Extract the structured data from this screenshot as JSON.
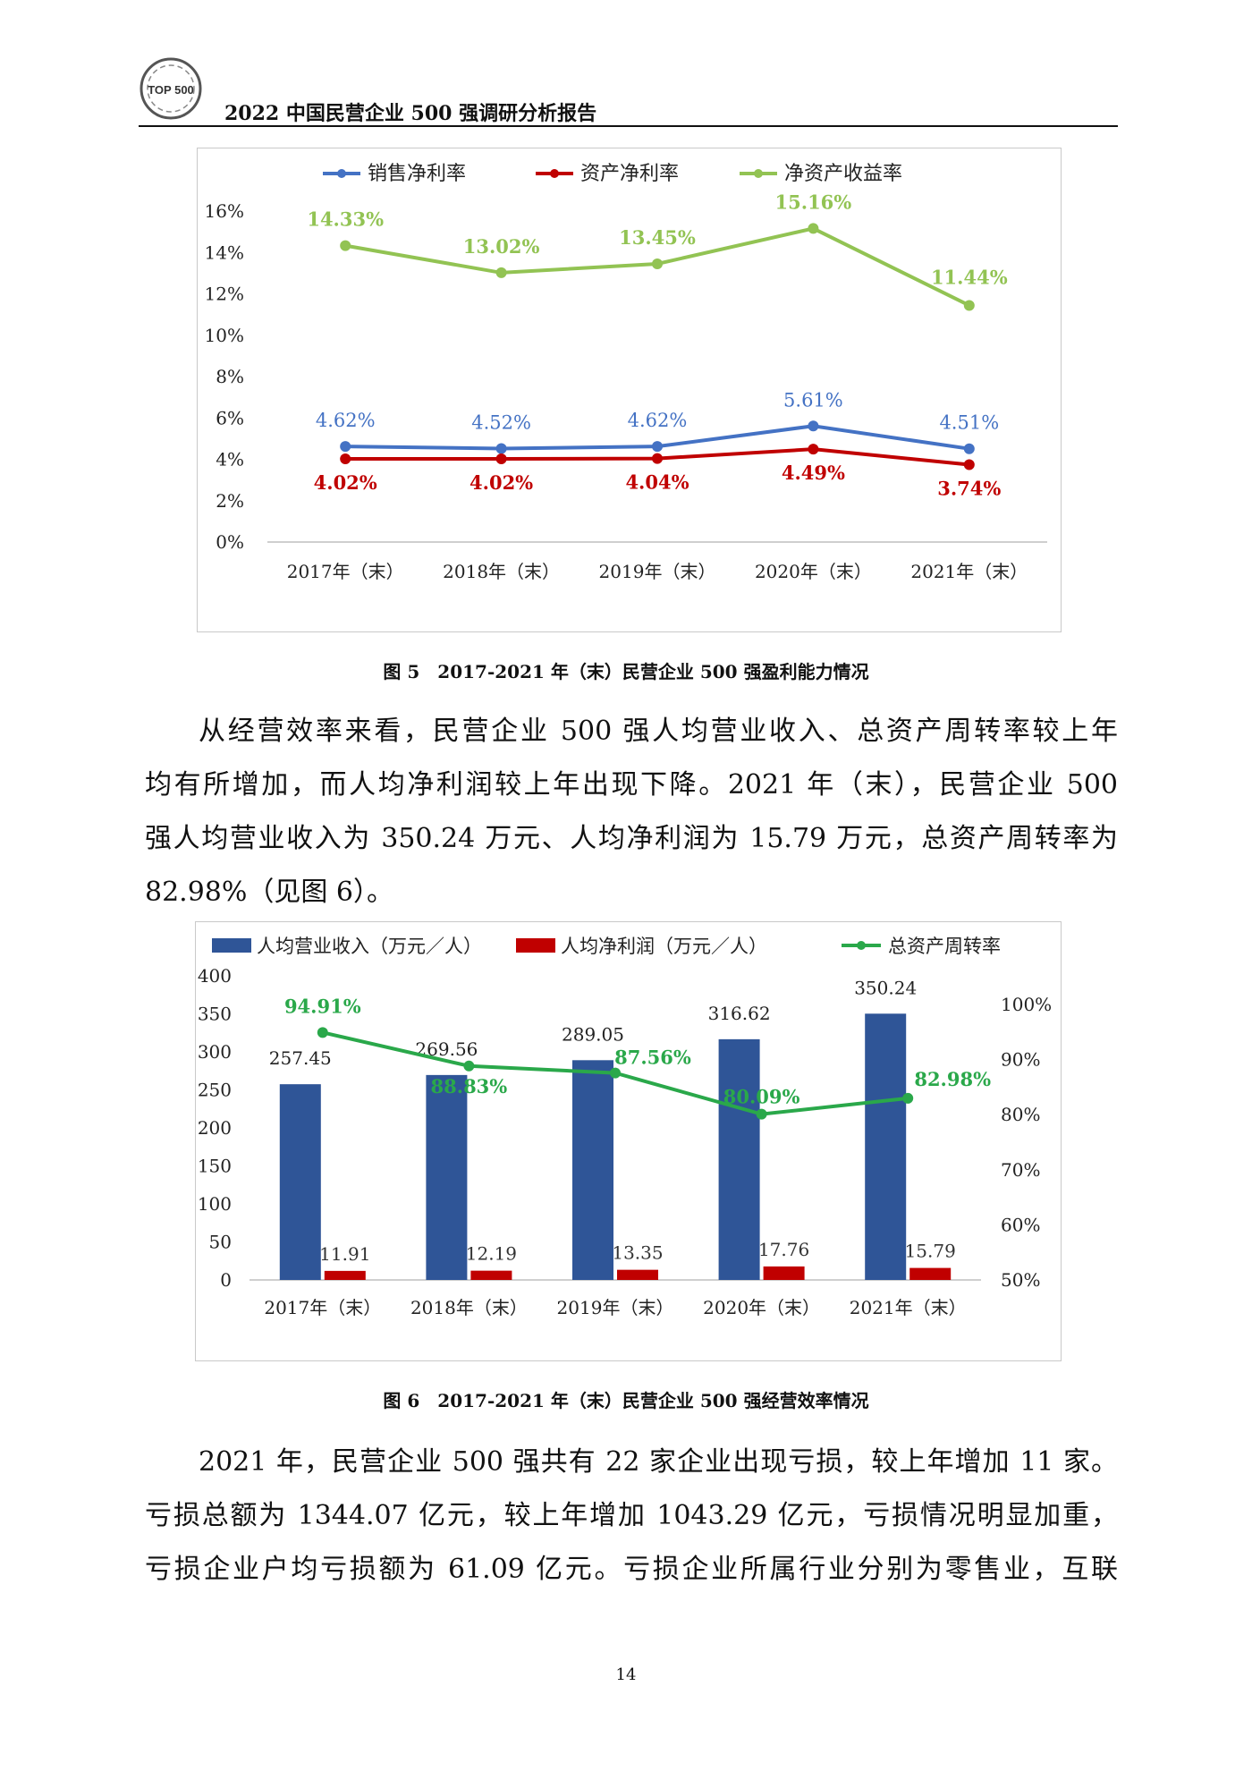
{
  "header": {
    "logo_text": "TOP 500",
    "title": "2022 中国民营企业 500 强调研分析报告"
  },
  "figure5": {
    "caption": "图 5　2017-2021 年（末）民营企业 500 强盈利能力情况",
    "chart_data": {
      "type": "line",
      "categories": [
        "2017年（末）",
        "2018年（末）",
        "2019年（末）",
        "2020年（末）",
        "2021年（末）"
      ],
      "ylim": [
        0,
        16
      ],
      "y_ticks": [
        "0%",
        "2%",
        "4%",
        "6%",
        "8%",
        "10%",
        "12%",
        "14%",
        "16%"
      ],
      "legend_position": "top",
      "grid": false,
      "series": [
        {
          "name": "销售净利率",
          "color": "#4472C4",
          "values": [
            4.62,
            4.52,
            4.62,
            5.61,
            4.51
          ],
          "labels": [
            "4.62%",
            "4.52%",
            "4.62%",
            "5.61%",
            "4.51%"
          ]
        },
        {
          "name": "资产净利率",
          "color": "#C00000",
          "values": [
            4.02,
            4.02,
            4.04,
            4.49,
            3.74
          ],
          "labels": [
            "4.02%",
            "4.02%",
            "4.04%",
            "4.49%",
            "3.74%"
          ]
        },
        {
          "name": "净资产收益率",
          "color": "#92C353",
          "values": [
            14.33,
            13.02,
            13.45,
            15.16,
            11.44
          ],
          "labels": [
            "14.33%",
            "13.02%",
            "13.45%",
            "15.16%",
            "11.44%"
          ]
        }
      ]
    }
  },
  "paragraph1": {
    "lines": [
      "从经营效率来看，民营企业 500 强人均营业收入、总资产周转率较上年",
      "均有所增加，而人均净利润较上年出现下降。2021 年（末），民营企业 500",
      "强人均营业收入为 350.24 万元、人均净利润为 15.79 万元，总资产周转率为",
      "82.98%（见图 6）。"
    ]
  },
  "figure6": {
    "caption": "图 6　2017-2021 年（末）民营企业 500 强经营效率情况",
    "chart_data": {
      "type": "bar",
      "categories": [
        "2017年（末）",
        "2018年（末）",
        "2019年（末）",
        "2020年（末）",
        "2021年（末）"
      ],
      "ylim": [
        0,
        400
      ],
      "y_ticks": [
        "0",
        "50",
        "100",
        "150",
        "200",
        "250",
        "300",
        "350",
        "400"
      ],
      "y2lim": [
        50,
        100
      ],
      "y2_ticks": [
        "50%",
        "60%",
        "70%",
        "80%",
        "90%",
        "100%"
      ],
      "legend_position": "top",
      "grid": false,
      "series": [
        {
          "name": "人均营业收入（万元／人）",
          "type": "bar",
          "color": "#2F5597",
          "values": [
            257.45,
            269.56,
            289.05,
            316.62,
            350.24
          ],
          "labels": [
            "257.45",
            "269.56",
            "289.05",
            "316.62",
            "350.24"
          ]
        },
        {
          "name": "人均净利润（万元／人）",
          "type": "bar",
          "color": "#C00000",
          "values": [
            11.91,
            12.19,
            13.35,
            17.76,
            15.79
          ],
          "labels": [
            "11.91",
            "12.19",
            "13.35",
            "17.76",
            "15.79"
          ]
        },
        {
          "name": "总资产周转率",
          "type": "line",
          "axis": "right",
          "color": "#2AA84A",
          "values": [
            94.91,
            88.83,
            87.56,
            80.09,
            82.98
          ],
          "labels": [
            "94.91%",
            "88.83%",
            "87.56%",
            "80.09%",
            "82.98%"
          ]
        }
      ]
    }
  },
  "paragraph2": {
    "lines": [
      "2021 年，民营企业 500 强共有 22 家企业出现亏损，较上年增加 11 家。",
      "亏损总额为 1344.07 亿元，较上年增加 1043.29 亿元，亏损情况明显加重，",
      "亏损企业户均亏损额为 61.09 亿元。亏损企业所属行业分别为零售业，互联"
    ]
  },
  "page_number": "14"
}
